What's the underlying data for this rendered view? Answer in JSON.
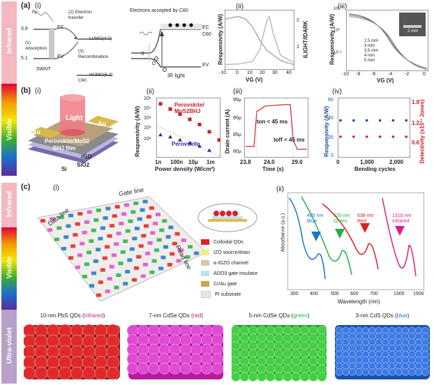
{
  "bands": {
    "infrared_top": "Infrared",
    "visible_mid": "Visible",
    "infrared_c": "Infrared",
    "visible_c": "Visible",
    "uv_c": "Ultra-violet"
  },
  "panel_a": {
    "letter": "(a)",
    "i": {
      "tag": "(i)",
      "hv": "hν",
      "level_38": "3.8",
      "level_51": "5.1",
      "absorption": "(1) Absorption",
      "ec": "EC",
      "ev": "EV",
      "swnt": "SWNT",
      "electron_transfer": "(2) Electron transfer",
      "lumo": "LUMO(4.0)",
      "recombination": "(3) Recombination",
      "homo": "HOMO(6.2)",
      "c60": "C60",
      "electrons_caption": "Electrons accepted by C60",
      "ir_light": "IR light",
      "s": "S",
      "d": "D"
    },
    "ii": {
      "tag": "(ii)",
      "ylabel": "Responsivity (A/W)",
      "ylabel_right": "ILIGHT/IDARK",
      "xlabel": "VG (V)",
      "xticks": [
        "-10",
        "0",
        "10",
        "20",
        "30",
        "40"
      ],
      "yticks_right": [
        "1",
        "2"
      ]
    },
    "iii": {
      "tag": "(iii)",
      "ylabel": "Responsivity (A/W)",
      "xlabel": "VG (V)",
      "xticks": [
        "-10",
        "-8",
        "-6",
        "-4",
        "-2",
        "0"
      ],
      "yticks": [
        "10⁻³",
        "10⁻²",
        "10⁻¹",
        "10⁰",
        "10¹",
        "10²"
      ],
      "legend": [
        "2.5 mm",
        "3 mm",
        "3.5 mm",
        "4 mm",
        "5 mm"
      ],
      "inset_label": "2 mm"
    }
  },
  "panel_b": {
    "letter": "(b)",
    "i": {
      "tag": "(i)",
      "light": "Light",
      "au_left": "Au",
      "au_right": "Au",
      "film1": "Perovskite/MoS2",
      "film2": "BHJ film",
      "rgo": "rGO",
      "sio2": "SiO2",
      "si": "Si"
    },
    "ii": {
      "tag": "(ii)",
      "ylabel": "Responsivity (A/W)",
      "xlabel": "Power density (W/cm²)",
      "xticks": [
        "1n",
        "100n",
        "10μ",
        "1m"
      ],
      "yticks": [
        "10¹",
        "10²",
        "10³",
        "10⁴",
        "10⁵",
        "10⁶"
      ],
      "legend1": "Perovskite/ MoS2BHJ",
      "legend2": "Perovskite"
    },
    "iii": {
      "tag": "(iii)",
      "ylabel": "Drain current (A)",
      "xlabel": "Time (s)",
      "xticks": [
        "23.8",
        "24.0",
        "29.0"
      ],
      "yticks": [
        "80μ",
        "85μ",
        "90μ",
        "95μ"
      ],
      "ton": "ton < 45 ms",
      "toff": "toff < 45 ms"
    },
    "iv": {
      "tag": "(iv)",
      "ylabel": "Responsivity (A/W)",
      "ylabel_right": "Detectivity (x10¹¹ Jones)",
      "xlabel": "Bending cycles",
      "xticks": [
        "0",
        "1,000",
        "2,000"
      ],
      "yticks": [
        "0",
        "20",
        "40",
        "60"
      ],
      "yticks_right": [
        "0.6",
        "1.2",
        "1.8"
      ]
    }
  },
  "panel_c": {
    "letter": "(c)",
    "i": {
      "tag": "(i)",
      "gate_line": "Gate line",
      "data_line": "Data line",
      "read_line": "Read line",
      "legend": [
        {
          "label": "Colloidal QDs",
          "color": "#e02020"
        },
        {
          "label": "IZO source/drain",
          "color": "#f4ee7a"
        },
        {
          "label": "a-IGZO channel",
          "color": "#d8c8a8"
        },
        {
          "label": "Al2O3 gate insulator",
          "color": "#bfe2f2"
        },
        {
          "label": "Cr/Au gate",
          "color": "#c8a84a"
        },
        {
          "label": "PI substrate",
          "color": "#ece6dc"
        }
      ]
    },
    "ii": {
      "tag": "(ii)",
      "ylabel": "Absorbance (a.u.)",
      "xlabel": "Wavelength (nm)",
      "xticks": [
        "300",
        "400",
        "500",
        "600",
        "700",
        "1300",
        "1500"
      ],
      "peaks": [
        {
          "nm": "405 nm",
          "name": "Blue",
          "color": "#1a73c9"
        },
        {
          "nm": "520 nm",
          "name": "Green",
          "color": "#22b04a"
        },
        {
          "nm": "638 nm",
          "name": "Red",
          "color": "#d8202a"
        },
        {
          "nm": "1310 nm",
          "name": "Infrared",
          "color": "#e01a8a"
        }
      ]
    },
    "bottom": [
      {
        "prefix": "10-nm PbS QDs (",
        "color_word": "infrared",
        "suffix": ")",
        "word_color": "#e01a8a"
      },
      {
        "prefix": "7-nm CdSe QDs (",
        "color_word": "red",
        "suffix": ")",
        "word_color": "#d8202a"
      },
      {
        "prefix": "5-nm CdSe QDs (",
        "color_word": "green",
        "suffix": ")",
        "word_color": "#22b04a"
      },
      {
        "prefix": "3-nm CdS QDs (",
        "color_word": "blue",
        "suffix": ")",
        "word_color": "#1a73c9"
      }
    ]
  },
  "chart_data": [
    {
      "type": "line",
      "panel": "a-ii",
      "xlabel": "VG (V)",
      "ylabel": "Responsivity (A/W)",
      "xlim": [
        -10,
        40
      ],
      "series": [
        {
          "x": [
            -10,
            0,
            5,
            10,
            15,
            20,
            25,
            30,
            35,
            40
          ],
          "values": [
            0.9,
            0.95,
            0.9,
            0.75,
            0.5,
            0.3,
            0.2,
            0.1,
            0.05,
            0.02
          ]
        },
        {
          "x": [
            -10,
            0,
            10,
            15,
            20,
            22,
            25,
            30,
            40
          ],
          "values": [
            0.02,
            0.03,
            0.08,
            0.3,
            0.85,
            0.95,
            0.6,
            0.2,
            0.05
          ]
        }
      ]
    },
    {
      "type": "scatter",
      "panel": "b-ii",
      "xlabel": "Power density (W/cm²)",
      "ylabel": "Responsivity (A/W)",
      "series": [
        {
          "name": "Perovskite/ MoS2BHJ",
          "values": [
            6,
            5.5,
            5,
            4.5,
            4,
            3.3,
            2.5
          ]
        },
        {
          "name": "Perovskite",
          "values": [
            3,
            2.8,
            2.5,
            2.2,
            1.9,
            1.5
          ]
        }
      ]
    },
    {
      "type": "line",
      "panel": "b-iv",
      "xlabel": "Bending cycles",
      "series": [
        {
          "x": [
            0,
            500,
            1000,
            1500,
            2000,
            2500
          ],
          "values": [
            40,
            40,
            40,
            40,
            40,
            40
          ]
        },
        {
          "x": [
            0,
            500,
            1000,
            1500,
            2000,
            2500
          ],
          "values": [
            0.6,
            0.6,
            0.6,
            0.6,
            0.6,
            0.6
          ]
        }
      ]
    }
  ]
}
